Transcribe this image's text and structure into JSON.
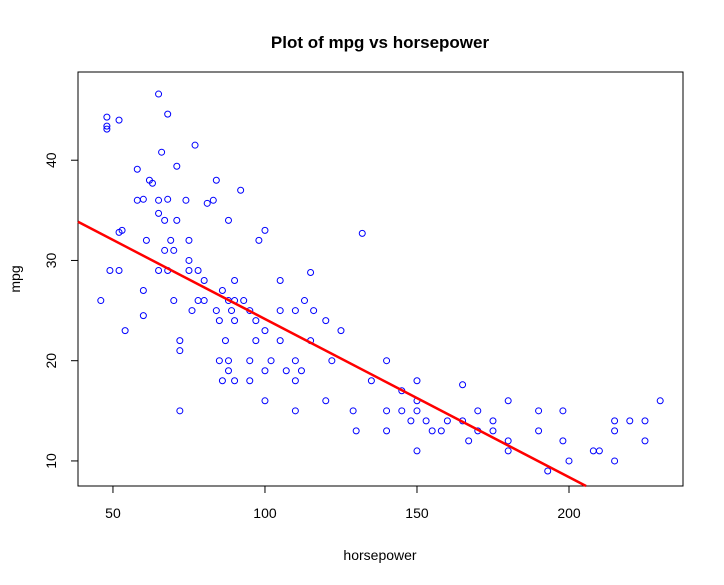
{
  "chart_data": {
    "type": "scatter",
    "title": "Plot of mpg vs horsepower",
    "x_label": "horsepower",
    "y_label": "mpg",
    "x": [
      46,
      48,
      48,
      48,
      49,
      52,
      52,
      52,
      53,
      54,
      58,
      58,
      60,
      60,
      60,
      61,
      62,
      63,
      65,
      65,
      65,
      65,
      66,
      67,
      67,
      68,
      68,
      68,
      69,
      70,
      70,
      71,
      71,
      72,
      72,
      72,
      74,
      75,
      75,
      75,
      76,
      77,
      78,
      78,
      80,
      80,
      81,
      83,
      84,
      84,
      85,
      85,
      86,
      86,
      87,
      88,
      88,
      88,
      88,
      89,
      90,
      90,
      90,
      90,
      92,
      93,
      95,
      95,
      95,
      97,
      97,
      98,
      100,
      100,
      100,
      100,
      102,
      105,
      105,
      105,
      107,
      110,
      110,
      110,
      110,
      112,
      113,
      115,
      115,
      116,
      120,
      120,
      122,
      125,
      129,
      130,
      132,
      135,
      140,
      140,
      140,
      145,
      145,
      148,
      150,
      150,
      150,
      150,
      153,
      155,
      158,
      160,
      165,
      165,
      167,
      170,
      170,
      175,
      175,
      180,
      180,
      180,
      190,
      190,
      193,
      198,
      198,
      200,
      208,
      210,
      215,
      215,
      215,
      220,
      225,
      225,
      230
    ],
    "values": [
      26,
      43.4,
      44.3,
      43.1,
      29,
      44,
      29,
      32.8,
      33,
      23,
      39.1,
      36,
      24.5,
      27,
      36.1,
      32,
      38,
      37.7,
      46.6,
      36,
      34.7,
      29,
      40.8,
      34,
      31,
      44.6,
      36.1,
      29,
      32,
      31,
      26,
      39.4,
      34,
      15,
      21,
      22,
      36,
      29,
      30,
      32,
      25,
      41.5,
      29,
      26,
      26,
      28,
      35.7,
      36,
      38,
      25,
      20,
      24,
      18,
      27,
      22,
      19,
      20,
      26,
      34,
      25,
      24,
      18,
      28,
      26,
      37,
      26,
      25,
      20,
      18,
      22,
      24,
      32,
      19,
      16,
      33,
      23,
      20,
      22,
      25,
      28,
      19,
      20,
      18,
      15,
      25,
      19,
      26,
      22,
      28.8,
      25,
      24,
      16,
      20,
      23,
      15,
      13,
      32.7,
      18,
      15,
      20,
      13,
      15,
      17,
      14,
      16,
      18,
      11,
      15,
      14,
      13,
      13,
      14,
      14,
      17.6,
      12,
      15,
      13,
      13,
      14,
      12,
      11,
      16,
      13,
      15,
      9,
      12,
      15,
      10,
      11,
      11,
      13,
      10,
      14,
      14,
      14,
      12,
      16
    ],
    "color": "#0000ff",
    "fit_line": {
      "x": [
        38.5,
        205.6
      ],
      "values": [
        33.86,
        7.5
      ],
      "color": "#ff0000"
    },
    "xlim": [
      38.5,
      237.5
    ],
    "ylim": [
      7.5,
      48.8
    ],
    "xticks": [
      50,
      100,
      150,
      200
    ],
    "yticks": [
      10,
      20,
      30,
      40
    ]
  }
}
